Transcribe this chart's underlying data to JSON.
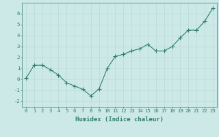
{
  "x": [
    0,
    1,
    2,
    3,
    4,
    5,
    6,
    7,
    8,
    9,
    10,
    11,
    12,
    13,
    14,
    15,
    16,
    17,
    18,
    19,
    20,
    21,
    22,
    23
  ],
  "y": [
    0.1,
    1.3,
    1.3,
    0.9,
    0.4,
    -0.3,
    -0.6,
    -0.9,
    -1.5,
    -0.85,
    1.0,
    2.1,
    2.3,
    2.6,
    2.8,
    3.2,
    2.6,
    2.6,
    3.0,
    3.8,
    4.5,
    4.5,
    5.3,
    6.5
  ],
  "line_color": "#2e7d6e",
  "marker": "+",
  "marker_size": 4,
  "bg_color": "#cce9e8",
  "grid_color": "#b8d8d6",
  "axis_color": "#2e7d6e",
  "xlabel": "Humidex (Indice chaleur)",
  "xlim": [
    -0.5,
    23.5
  ],
  "ylim": [
    -2.5,
    7.0
  ],
  "yticks": [
    -2,
    -1,
    0,
    1,
    2,
    3,
    4,
    5,
    6
  ],
  "xticks": [
    0,
    1,
    2,
    3,
    4,
    5,
    6,
    7,
    8,
    9,
    10,
    11,
    12,
    13,
    14,
    15,
    16,
    17,
    18,
    19,
    20,
    21,
    22,
    23
  ],
  "tick_fontsize": 5.2,
  "label_fontsize": 6.5
}
